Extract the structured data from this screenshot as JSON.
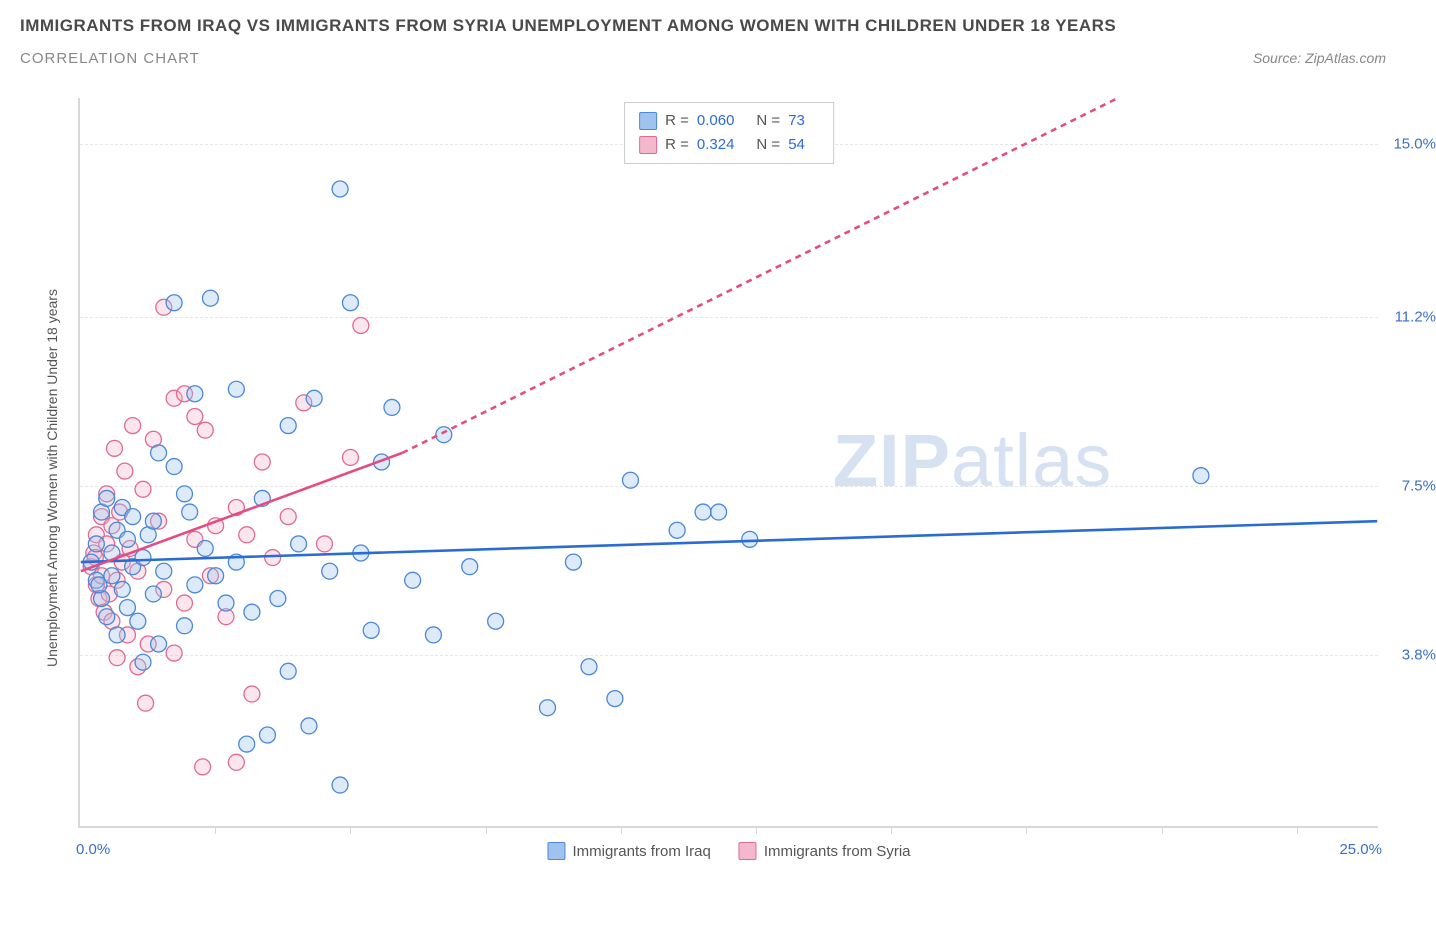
{
  "header": {
    "title": "IMMIGRANTS FROM IRAQ VS IMMIGRANTS FROM SYRIA UNEMPLOYMENT AMONG WOMEN WITH CHILDREN UNDER 18 YEARS",
    "subtitle": "CORRELATION CHART",
    "source_prefix": "Source: ",
    "source": "ZipAtlas.com"
  },
  "watermark": {
    "bold": "ZIP",
    "light": "atlas"
  },
  "chart": {
    "type": "scatter",
    "y_axis_label": "Unemployment Among Women with Children Under 18 years",
    "xlim": [
      0.0,
      25.0
    ],
    "ylim": [
      0.0,
      16.0
    ],
    "x_min_label": "0.0%",
    "x_max_label": "25.0%",
    "y_ticks": [
      {
        "value": 3.8,
        "label": "3.8%"
      },
      {
        "value": 7.5,
        "label": "7.5%"
      },
      {
        "value": 11.2,
        "label": "11.2%"
      },
      {
        "value": 15.0,
        "label": "15.0%"
      }
    ],
    "x_tick_positions": [
      2.6,
      5.2,
      7.8,
      10.4,
      13.0,
      15.6,
      18.2,
      20.8,
      23.4
    ],
    "background_color": "#ffffff",
    "grid_color": "#e6e6e6",
    "axis_color": "#d8d8d8",
    "tick_label_color": "#3b6fc9",
    "marker_radius": 8,
    "marker_stroke_width": 1.3,
    "marker_fill_opacity": 0.35,
    "trend_line_width": 2.6,
    "trend_dash": "6,5",
    "stats": [
      {
        "series": "iraq",
        "R": "0.060",
        "N": "73"
      },
      {
        "series": "syria",
        "R": "0.324",
        "N": "54"
      }
    ],
    "series": {
      "iraq": {
        "label": "Immigrants from Iraq",
        "fill": "#9fc3ee",
        "stroke": "#4a88d8",
        "line_color": "#2b6cd4",
        "trend": {
          "x1": 0.0,
          "y1": 5.8,
          "x2": 25.0,
          "y2": 6.7
        },
        "points": [
          [
            0.2,
            5.8
          ],
          [
            0.3,
            6.2
          ],
          [
            0.3,
            5.4
          ],
          [
            0.4,
            6.9
          ],
          [
            0.4,
            5.0
          ],
          [
            0.5,
            7.2
          ],
          [
            0.5,
            4.6
          ],
          [
            0.6,
            6.0
          ],
          [
            0.6,
            5.5
          ],
          [
            0.7,
            6.5
          ],
          [
            0.7,
            4.2
          ],
          [
            0.8,
            7.0
          ],
          [
            0.8,
            5.2
          ],
          [
            0.9,
            6.3
          ],
          [
            0.9,
            4.8
          ],
          [
            1.0,
            5.7
          ],
          [
            1.0,
            6.8
          ],
          [
            1.1,
            4.5
          ],
          [
            1.2,
            5.9
          ],
          [
            1.2,
            3.6
          ],
          [
            1.3,
            6.4
          ],
          [
            1.4,
            5.1
          ],
          [
            1.5,
            8.2
          ],
          [
            1.5,
            4.0
          ],
          [
            1.6,
            5.6
          ],
          [
            1.8,
            7.9
          ],
          [
            1.8,
            11.5
          ],
          [
            2.0,
            7.3
          ],
          [
            2.0,
            4.4
          ],
          [
            2.2,
            5.3
          ],
          [
            2.2,
            9.5
          ],
          [
            2.4,
            6.1
          ],
          [
            2.5,
            11.6
          ],
          [
            2.6,
            5.5
          ],
          [
            2.8,
            4.9
          ],
          [
            3.0,
            9.6
          ],
          [
            3.0,
            5.8
          ],
          [
            3.2,
            1.8
          ],
          [
            3.3,
            4.7
          ],
          [
            3.5,
            7.2
          ],
          [
            3.6,
            2.0
          ],
          [
            3.8,
            5.0
          ],
          [
            4.0,
            8.8
          ],
          [
            4.0,
            3.4
          ],
          [
            4.2,
            6.2
          ],
          [
            4.4,
            2.2
          ],
          [
            4.5,
            9.4
          ],
          [
            4.8,
            5.6
          ],
          [
            5.0,
            14.0
          ],
          [
            5.0,
            0.9
          ],
          [
            5.2,
            11.5
          ],
          [
            5.4,
            6.0
          ],
          [
            5.6,
            4.3
          ],
          [
            5.8,
            8.0
          ],
          [
            6.0,
            9.2
          ],
          [
            6.4,
            5.4
          ],
          [
            6.8,
            4.2
          ],
          [
            7.0,
            8.6
          ],
          [
            7.5,
            5.7
          ],
          [
            8.0,
            4.5
          ],
          [
            9.0,
            2.6
          ],
          [
            9.5,
            5.8
          ],
          [
            9.8,
            3.5
          ],
          [
            10.3,
            2.8
          ],
          [
            10.6,
            7.6
          ],
          [
            11.5,
            6.5
          ],
          [
            12.0,
            6.9
          ],
          [
            12.3,
            6.9
          ],
          [
            12.9,
            6.3
          ],
          [
            21.6,
            7.7
          ],
          [
            1.4,
            6.7
          ],
          [
            2.1,
            6.9
          ],
          [
            0.35,
            5.3
          ]
        ]
      },
      "syria": {
        "label": "Immigrants from Syria",
        "fill": "#f4b8cc",
        "stroke": "#e06a94",
        "line_color": "#e34d84",
        "trend_solid": {
          "x1": 0.0,
          "y1": 5.6,
          "x2": 6.2,
          "y2": 8.2
        },
        "trend_dash": {
          "x1": 6.2,
          "y1": 8.2,
          "x2": 20.0,
          "y2": 16.0
        },
        "points": [
          [
            0.2,
            5.7
          ],
          [
            0.25,
            6.0
          ],
          [
            0.3,
            5.3
          ],
          [
            0.3,
            6.4
          ],
          [
            0.35,
            5.0
          ],
          [
            0.4,
            6.8
          ],
          [
            0.4,
            5.5
          ],
          [
            0.45,
            4.7
          ],
          [
            0.5,
            6.2
          ],
          [
            0.5,
            7.3
          ],
          [
            0.55,
            5.1
          ],
          [
            0.6,
            4.5
          ],
          [
            0.6,
            6.6
          ],
          [
            0.65,
            8.3
          ],
          [
            0.7,
            5.4
          ],
          [
            0.7,
            3.7
          ],
          [
            0.75,
            6.9
          ],
          [
            0.8,
            5.8
          ],
          [
            0.85,
            7.8
          ],
          [
            0.9,
            4.2
          ],
          [
            0.95,
            6.1
          ],
          [
            1.0,
            8.8
          ],
          [
            1.1,
            5.6
          ],
          [
            1.1,
            3.5
          ],
          [
            1.2,
            7.4
          ],
          [
            1.3,
            4.0
          ],
          [
            1.4,
            8.5
          ],
          [
            1.5,
            6.7
          ],
          [
            1.6,
            11.4
          ],
          [
            1.6,
            5.2
          ],
          [
            1.8,
            9.4
          ],
          [
            1.8,
            3.8
          ],
          [
            2.0,
            9.5
          ],
          [
            2.0,
            4.9
          ],
          [
            2.2,
            9.0
          ],
          [
            2.2,
            6.3
          ],
          [
            2.4,
            8.7
          ],
          [
            2.5,
            5.5
          ],
          [
            2.6,
            6.6
          ],
          [
            2.8,
            4.6
          ],
          [
            3.0,
            7.0
          ],
          [
            3.0,
            1.4
          ],
          [
            3.2,
            6.4
          ],
          [
            3.3,
            2.9
          ],
          [
            3.5,
            8.0
          ],
          [
            3.7,
            5.9
          ],
          [
            4.0,
            6.8
          ],
          [
            4.3,
            9.3
          ],
          [
            4.7,
            6.2
          ],
          [
            5.2,
            8.1
          ],
          [
            5.4,
            11.0
          ],
          [
            1.25,
            2.7
          ],
          [
            2.35,
            1.3
          ],
          [
            0.28,
            5.9
          ]
        ]
      }
    }
  }
}
